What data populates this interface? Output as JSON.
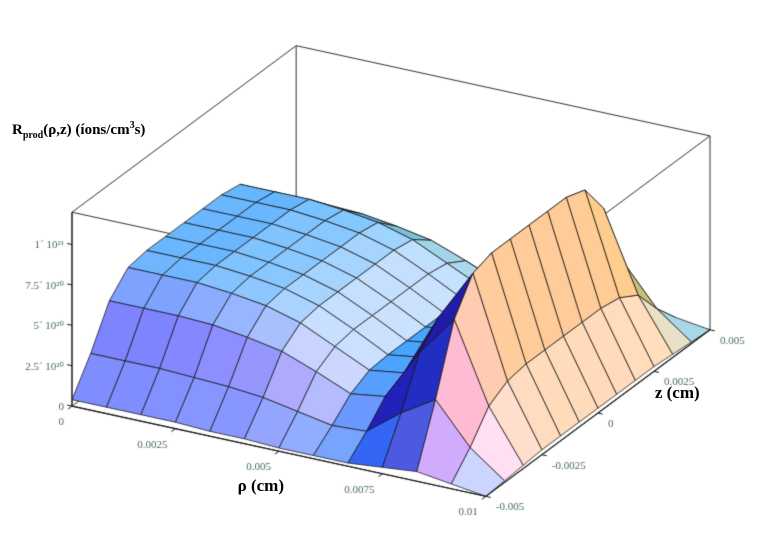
{
  "title": {
    "base": "R",
    "sub": "prod",
    "args_units_pre": "(ρ,z) (íons/cm",
    "units_sup": "3",
    "units_post": "s)"
  },
  "axes": {
    "rho": {
      "label": "ρ (cm)",
      "min": 0,
      "max": 0.01,
      "ticks": [
        "0",
        "0.0025",
        "0.005",
        "0.0075",
        "0.01"
      ],
      "tick_values": [
        0,
        0.0025,
        0.005,
        0.0075,
        0.01
      ]
    },
    "z": {
      "label": "z (cm)",
      "min": -0.005,
      "max": 0.005,
      "ticks": [
        "-0.005",
        "-0.0025",
        "0",
        "0.0025",
        "0.005"
      ],
      "tick_values": [
        -0.005,
        -0.0025,
        0,
        0.0025,
        0.005
      ]
    },
    "R": {
      "ticks": [
        "0",
        "2.5´ 10²⁰",
        "5´ 10²⁰",
        "7.5´ 10²⁰",
        "1´ 10²¹"
      ],
      "tick_values_1e20": [
        0,
        2.5,
        5,
        7.5,
        10
      ],
      "box_max_1e20": 12
    }
  },
  "chart_data": {
    "type": "surface3d",
    "title": "R_prod(ρ,z) (íons/cm³s)",
    "xlabel": "ρ (cm)",
    "ylabel": "z (cm)",
    "zlabel": "R_prod (íons/cm³s)",
    "xlim": [
      0,
      0.01
    ],
    "ylim": [
      -0.005,
      0.005
    ],
    "zlim_1e20": [
      0,
      12
    ],
    "value_units": "ions/(cm^3 s), stored in units of 1e20",
    "rho_cm": [
      0,
      0.00083,
      0.00167,
      0.0025,
      0.00333,
      0.00417,
      0.005,
      0.00583,
      0.00667,
      0.0075,
      0.00833,
      0.00917,
      0.01
    ],
    "z_cm": [
      -0.005,
      -0.00417,
      -0.00333,
      -0.0025,
      -0.00167,
      -0.00083,
      0,
      0.00083,
      0.00167,
      0.0025,
      0.00333,
      0.00417,
      0.005
    ],
    "values_1e20": [
      [
        0.4,
        0.4,
        0.4,
        0.4,
        0.3,
        0.3,
        0.2,
        0.2,
        0.2,
        0.4,
        0.6,
        0.3,
        0.0
      ],
      [
        2.4,
        2.4,
        2.4,
        2.3,
        2.2,
        2.0,
        1.6,
        1.2,
        1.3,
        2.9,
        4.2,
        1.7,
        0.1
      ],
      [
        4.8,
        4.8,
        4.8,
        4.7,
        4.4,
        4.0,
        3.2,
        2.3,
        2.6,
        5.8,
        8.3,
        3.4,
        0.2
      ],
      [
        6.0,
        6.0,
        6.0,
        5.8,
        5.5,
        4.9,
        3.9,
        2.9,
        3.2,
        7.1,
        10.3,
        4.1,
        0.3
      ],
      [
        6.2,
        6.2,
        6.2,
        6.0,
        5.7,
        5.1,
        4.1,
        3.0,
        3.3,
        7.4,
        10.7,
        4.3,
        0.3
      ],
      [
        6.2,
        6.2,
        6.2,
        6.0,
        5.7,
        5.1,
        4.1,
        3.0,
        3.3,
        7.4,
        10.7,
        4.3,
        0.3
      ],
      [
        6.2,
        6.2,
        6.2,
        6.0,
        5.7,
        5.1,
        4.1,
        3.0,
        3.3,
        7.4,
        10.7,
        4.3,
        0.3
      ],
      [
        6.2,
        6.2,
        6.2,
        6.0,
        5.7,
        5.1,
        4.1,
        3.0,
        3.3,
        7.4,
        10.7,
        4.3,
        0.3
      ],
      [
        6.2,
        6.2,
        6.2,
        6.0,
        5.7,
        5.1,
        4.1,
        3.0,
        3.3,
        7.4,
        10.7,
        4.3,
        0.3
      ],
      [
        6.0,
        6.0,
        6.0,
        5.8,
        5.5,
        4.9,
        3.9,
        2.9,
        3.2,
        7.1,
        10.3,
        4.1,
        0.3
      ],
      [
        4.8,
        4.8,
        4.8,
        4.7,
        4.4,
        4.0,
        3.2,
        2.3,
        2.6,
        5.8,
        8.3,
        3.4,
        0.2
      ],
      [
        2.4,
        2.4,
        2.4,
        2.3,
        2.2,
        2.0,
        1.6,
        1.2,
        1.3,
        2.9,
        4.2,
        1.7,
        0.1
      ],
      [
        0.4,
        0.4,
        0.4,
        0.4,
        0.3,
        0.3,
        0.2,
        0.2,
        0.2,
        0.4,
        0.6,
        0.3,
        0.0
      ]
    ],
    "legend": null,
    "grid": "mesh-on-surface"
  },
  "style": {
    "background": "#ffffff",
    "tick_color": "#4a6b6b",
    "axis_color": "#1a1a1a",
    "mesh_color": "#141414",
    "box_color": "#333333"
  }
}
